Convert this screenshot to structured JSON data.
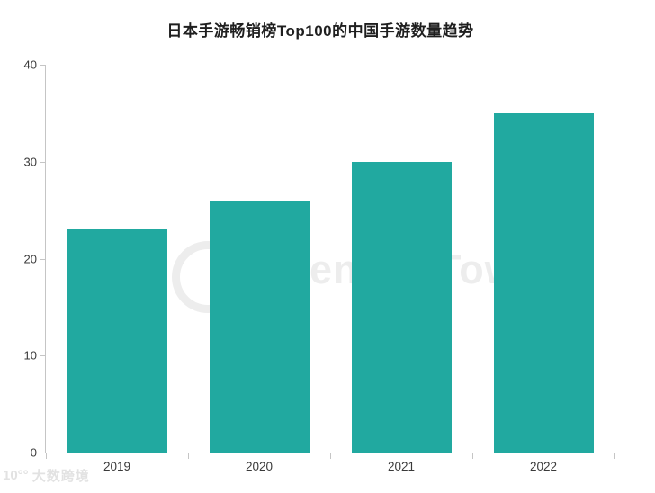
{
  "chart_data": {
    "type": "bar",
    "title": "日本手游畅销榜Top100的中国手游数量趋势",
    "categories": [
      "2019",
      "2020",
      "2021",
      "2022"
    ],
    "values": [
      23,
      26,
      30,
      35
    ],
    "xlabel": "",
    "ylabel": "",
    "ylim": [
      0,
      40
    ],
    "yticks": [
      0,
      10,
      20,
      30,
      40
    ],
    "grid": false,
    "legend": "none",
    "bar_color": "#21a9a0"
  },
  "watermark": {
    "center_text": "Sensor Tower",
    "bottom_left_glyph": "10°°",
    "bottom_left_text": "大数跨境"
  },
  "colors": {
    "bar": "#21a9a0",
    "axis_line": "#c5c5c5",
    "tick_label": "#3a3a3a",
    "title": "#1f1f1f",
    "watermark": "#ededed"
  }
}
